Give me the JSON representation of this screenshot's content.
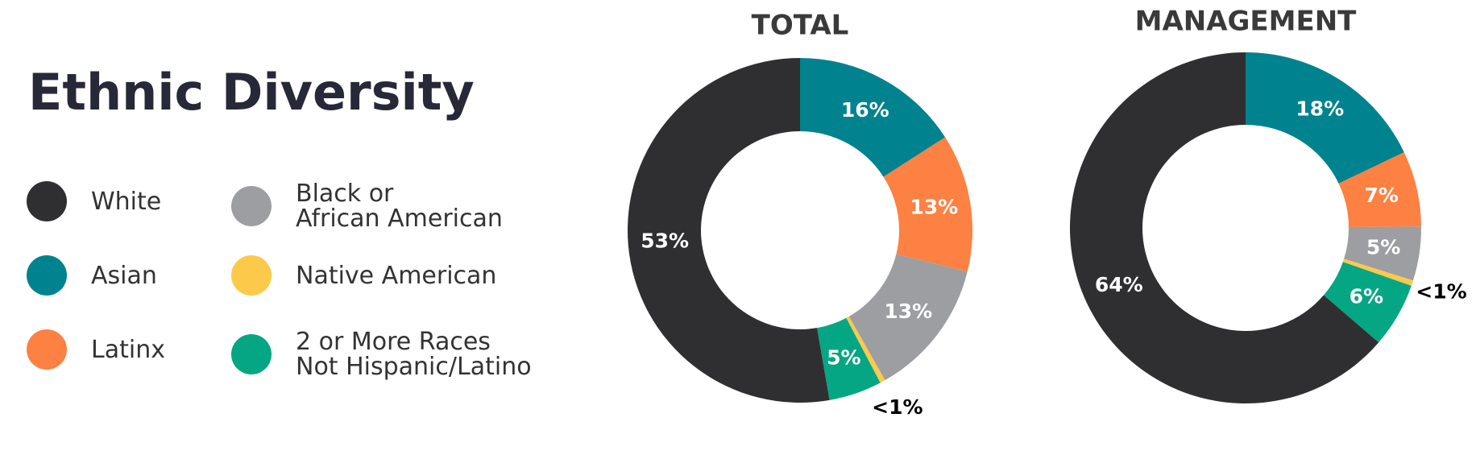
{
  "title": "Ethnic Diversity",
  "chart_data": [
    {
      "type": "pie",
      "title": "TOTAL",
      "categories": [
        "Asian",
        "Latinx",
        "Black or\nAfrican American",
        "Native American",
        "2 or More Races\nNot Hispanic/Latino",
        "White"
      ],
      "values": [
        16,
        13,
        13,
        0.5,
        5,
        53
      ],
      "value_labels": [
        "16%",
        "13%",
        "13%",
        "<1%",
        "5%",
        "53%"
      ],
      "colors": [
        "#00828f",
        "#fd8143",
        "#9d9ea1",
        "#fdc94a",
        "#05a683",
        "#2f2f31"
      ]
    },
    {
      "type": "pie",
      "title": "MANAGEMENT",
      "categories": [
        "Asian",
        "Latinx",
        "Black or\nAfrican American",
        "Native American",
        "2 or More Races\nNot Hispanic/Latino",
        "White"
      ],
      "values": [
        18,
        7,
        5,
        0.5,
        6,
        64
      ],
      "value_labels": [
        "18%",
        "7%",
        "5%",
        "<1%",
        "6%",
        "64%"
      ],
      "colors": [
        "#00828f",
        "#fd8143",
        "#9d9ea1",
        "#fdc94a",
        "#05a683",
        "#2f2f31"
      ]
    }
  ]
}
